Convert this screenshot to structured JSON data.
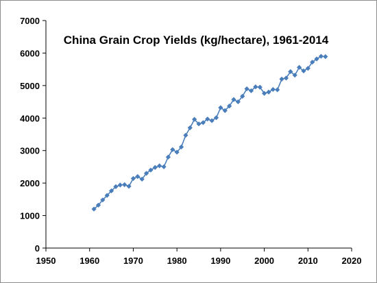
{
  "chart_data": {
    "type": "line",
    "title": "China Grain Crop Yields (kg/hectare), 1961-2014",
    "xlabel": "",
    "ylabel": "",
    "xlim": [
      1950,
      2020
    ],
    "ylim": [
      0,
      7000
    ],
    "xticks": [
      1950,
      1960,
      1970,
      1980,
      1990,
      2000,
      2010,
      2020
    ],
    "yticks": [
      0,
      1000,
      2000,
      3000,
      4000,
      5000,
      6000,
      7000
    ],
    "grid": false,
    "legend": "none",
    "marker": "diamond",
    "color": "#4a7ebb",
    "series": [
      {
        "x": [
          1961,
          1962,
          1963,
          1964,
          1965,
          1966,
          1967,
          1968,
          1969,
          1970,
          1971,
          1972,
          1973,
          1974,
          1975,
          1976,
          1977,
          1978,
          1979,
          1980,
          1981,
          1982,
          1983,
          1984,
          1985,
          1986,
          1987,
          1988,
          1989,
          1990,
          1991,
          1992,
          1993,
          1994,
          1995,
          1996,
          1997,
          1998,
          1999,
          2000,
          2001,
          2002,
          2003,
          2004,
          2005,
          2006,
          2007,
          2008,
          2009,
          2010,
          2011,
          2012,
          2013,
          2014
        ],
        "values": [
          1200,
          1320,
          1480,
          1620,
          1760,
          1890,
          1940,
          1950,
          1900,
          2140,
          2200,
          2120,
          2300,
          2400,
          2480,
          2530,
          2500,
          2800,
          3030,
          2950,
          3110,
          3470,
          3700,
          3960,
          3820,
          3860,
          3970,
          3920,
          4010,
          4320,
          4230,
          4370,
          4570,
          4500,
          4670,
          4900,
          4840,
          4960,
          4950,
          4760,
          4800,
          4880,
          4870,
          5200,
          5230,
          5430,
          5320,
          5560,
          5450,
          5530,
          5720,
          5820,
          5900,
          5890
        ]
      }
    ]
  }
}
